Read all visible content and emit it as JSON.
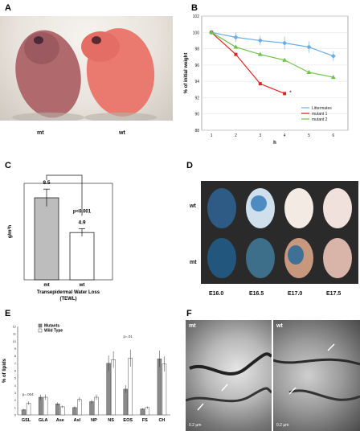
{
  "panels": {
    "A": {
      "letter": "A",
      "labels": [
        "mt",
        "wt"
      ]
    },
    "B": {
      "letter": "B"
    },
    "C": {
      "letter": "C"
    },
    "D": {
      "letter": "D",
      "rows": [
        "wt",
        "mt"
      ],
      "stages": [
        "E16.0",
        "E16.5",
        "E17.0",
        "E17.5"
      ]
    },
    "E": {
      "letter": "E"
    },
    "F": {
      "letter": "F",
      "subpanels": [
        "mt",
        "wt"
      ],
      "scale": "0.2 µm"
    }
  },
  "chart_data": [
    {
      "panel": "B",
      "type": "line",
      "ylabel": "% of initial weight",
      "xlabel": "h",
      "x": [
        1,
        2,
        3,
        4,
        5,
        6
      ],
      "ylim": [
        88,
        102
      ],
      "yticks": [
        88,
        90,
        92,
        94,
        96,
        98,
        100,
        102
      ],
      "series": [
        {
          "name": "Littermates",
          "color": "#6aaee6",
          "values": [
            100,
            99.4,
            99.0,
            98.7,
            98.2,
            97.1
          ],
          "errors": [
            0.2,
            0.6,
            0.6,
            0.8,
            0.7,
            0.6
          ]
        },
        {
          "name": "mutant 1",
          "color": "#e02424",
          "values": [
            100,
            97.3,
            93.7,
            92.5,
            null,
            null
          ]
        },
        {
          "name": "mutant 2",
          "color": "#6cc24a",
          "values": [
            100,
            98.2,
            97.3,
            96.6,
            95.1,
            94.5
          ]
        }
      ],
      "annotation": "*"
    },
    {
      "panel": "C",
      "type": "bar",
      "title": "Transepidermal Water Loss (TEWL)",
      "ylabel": "g/m²h",
      "categories": [
        "mt",
        "wt"
      ],
      "values": [
        8.5,
        4.9
      ],
      "errors": [
        0.9,
        0.4
      ],
      "ylim": [
        0,
        10
      ],
      "value_labels": [
        "8.5",
        "4.9"
      ],
      "significance": "p<0.001"
    },
    {
      "panel": "E",
      "type": "bar",
      "ylabel": "% of lipids",
      "categories": [
        "GSL",
        "GLA",
        "Ase",
        "Asl",
        "NP",
        "NS",
        "EOS",
        "FS",
        "CH"
      ],
      "ylim": [
        0,
        12
      ],
      "yticks": [
        0,
        1,
        2,
        3,
        4,
        5,
        6,
        7,
        8,
        9,
        10,
        11,
        12
      ],
      "series": [
        {
          "name": "Mutants",
          "color": "#8a8a8a",
          "values": [
            0.7,
            2.4,
            1.5,
            1.0,
            1.8,
            7.0,
            3.5,
            0.8,
            7.6
          ]
        },
        {
          "name": "Wild Type",
          "color": "#ffffff",
          "values": [
            1.6,
            2.4,
            1.1,
            2.1,
            2.4,
            7.5,
            7.7,
            1.0,
            6.9
          ]
        }
      ],
      "annotations": [
        "p=.004",
        "p=.01"
      ]
    }
  ]
}
